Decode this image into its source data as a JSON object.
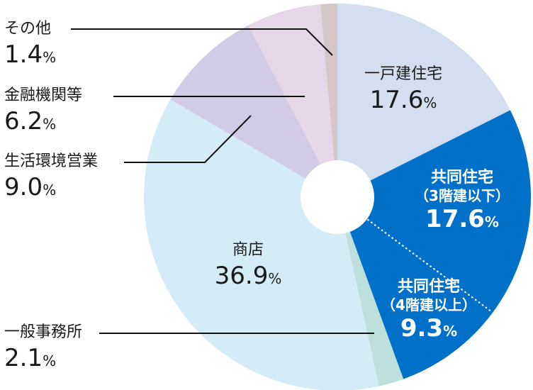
{
  "chart_data": {
    "type": "pie",
    "subtype": "donut",
    "title": "",
    "unit": "%",
    "start_angle": "12 o'clock, clockwise",
    "categories": [
      "一戸建住宅",
      "共同住宅（3階建以下）",
      "共同住宅（4階建以上）",
      "一般事務所",
      "商店",
      "生活環境営業",
      "金融機関等",
      "その他"
    ],
    "values": [
      17.6,
      17.6,
      9.3,
      2.1,
      36.9,
      9.0,
      6.2,
      1.4
    ],
    "colors": [
      "#d3def0",
      "#0070c9",
      "#0070c9",
      "#bde0dd",
      "#d4ebf8",
      "#d2cbe5",
      "#e7d5ea",
      "#d3c8c6"
    ],
    "annotations": [
      "Dotted white divider between 共同住宅（3階建以下） and 共同住宅（4階建以上）"
    ]
  },
  "labels": {
    "detached": {
      "name": "一戸建住宅",
      "value": "17.6",
      "pct": "%"
    },
    "apt_low": {
      "name": "共同住宅",
      "sub": "（3階建以下）",
      "value": "17.6",
      "pct": "%"
    },
    "apt_high": {
      "name": "共同住宅",
      "sub": "（4階建以上）",
      "value": "9.3",
      "pct": "%"
    },
    "office": {
      "name": "一般事務所",
      "value": "2.1",
      "pct": "%"
    },
    "shop": {
      "name": "商店",
      "value": "36.9",
      "pct": "%"
    },
    "service": {
      "name": "生活環境営業",
      "value": "9.0",
      "pct": "%"
    },
    "finance": {
      "name": "金融機関等",
      "value": "6.2",
      "pct": "%"
    },
    "other": {
      "name": "その他",
      "value": "1.4",
      "pct": "%"
    }
  }
}
